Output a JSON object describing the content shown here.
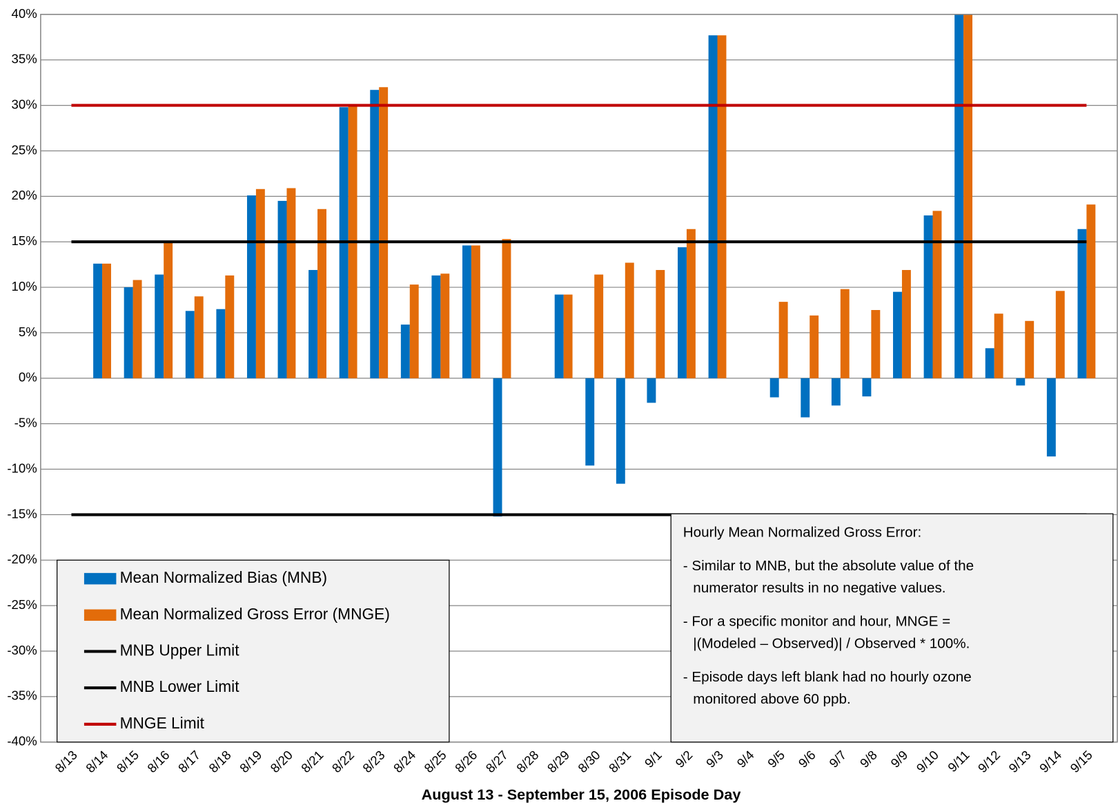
{
  "chart_data": {
    "type": "bar",
    "x_label": "August 13 - September 15, 2006 Episode Day",
    "categories": [
      "8/13",
      "8/14",
      "8/15",
      "8/16",
      "8/17",
      "8/18",
      "8/19",
      "8/20",
      "8/21",
      "8/22",
      "8/23",
      "8/24",
      "8/25",
      "8/26",
      "8/27",
      "8/28",
      "8/29",
      "8/30",
      "8/31",
      "9/1",
      "9/2",
      "9/3",
      "9/4",
      "9/5",
      "9/6",
      "9/7",
      "9/8",
      "9/9",
      "9/10",
      "9/11",
      "9/12",
      "9/13",
      "9/14",
      "9/15"
    ],
    "series": [
      {
        "name": "Mean Normalized Bias (MNB)",
        "color": "#0070c0",
        "values": [
          null,
          12.6,
          10.0,
          11.4,
          7.4,
          7.6,
          20.1,
          19.5,
          11.9,
          29.8,
          31.7,
          5.9,
          11.3,
          14.6,
          -15.2,
          null,
          9.2,
          -9.6,
          -11.6,
          -2.7,
          14.4,
          37.7,
          null,
          -2.1,
          -4.3,
          -3.0,
          -2.0,
          9.5,
          17.9,
          40,
          3.3,
          -0.8,
          -8.6,
          16.4
        ]
      },
      {
        "name": "Mean Normalized Gross Error (MNGE)",
        "color": "#e36c0a",
        "values": [
          null,
          12.6,
          10.8,
          14.9,
          9.0,
          11.3,
          20.8,
          20.9,
          18.6,
          30.0,
          32.0,
          10.3,
          11.5,
          14.6,
          15.3,
          null,
          9.2,
          11.4,
          12.7,
          11.9,
          16.4,
          37.7,
          null,
          8.4,
          6.9,
          9.8,
          7.5,
          11.9,
          18.4,
          40,
          7.1,
          6.3,
          9.6,
          19.1
        ]
      }
    ],
    "limits": [
      {
        "name": "MNB Upper Limit",
        "color": "#000000",
        "value": 15
      },
      {
        "name": "MNB Lower Limit",
        "color": "#000000",
        "value": -15
      },
      {
        "name": "MNGE Limit",
        "color": "#c00000",
        "value": 30
      }
    ],
    "ylim": [
      -40,
      40
    ],
    "yticks": [
      {
        "value": -40,
        "label": "-40%"
      },
      {
        "value": -35,
        "label": "-35%"
      },
      {
        "value": -30,
        "label": "-30%"
      },
      {
        "value": -25,
        "label": "-25%"
      },
      {
        "value": -20,
        "label": "-20%"
      },
      {
        "value": -15,
        "label": "-15%"
      },
      {
        "value": -10,
        "label": "-10%"
      },
      {
        "value": -5,
        "label": "-5%"
      },
      {
        "value": 0,
        "label": "0%"
      },
      {
        "value": 5,
        "label": "5%"
      },
      {
        "value": 10,
        "label": "10%"
      },
      {
        "value": 15,
        "label": "15%"
      },
      {
        "value": 20,
        "label": "20%"
      },
      {
        "value": 25,
        "label": "25%"
      },
      {
        "value": 30,
        "label": "30%"
      },
      {
        "value": 35,
        "label": "35%"
      },
      {
        "value": 40,
        "label": "40%"
      }
    ],
    "grid": true,
    "annotation": {
      "title": "Hourly Mean Normalized Gross Error:",
      "lines": [
        "- Similar to MNB, but the absolute value of the",
        "numerator results in no negative values.",
        "- For a specific monitor and hour, MNGE =",
        "|(Modeled – Observed)| / Observed * 100%.",
        "- Episode days left blank had no hourly ozone",
        "monitored above 60 ppb."
      ]
    }
  }
}
